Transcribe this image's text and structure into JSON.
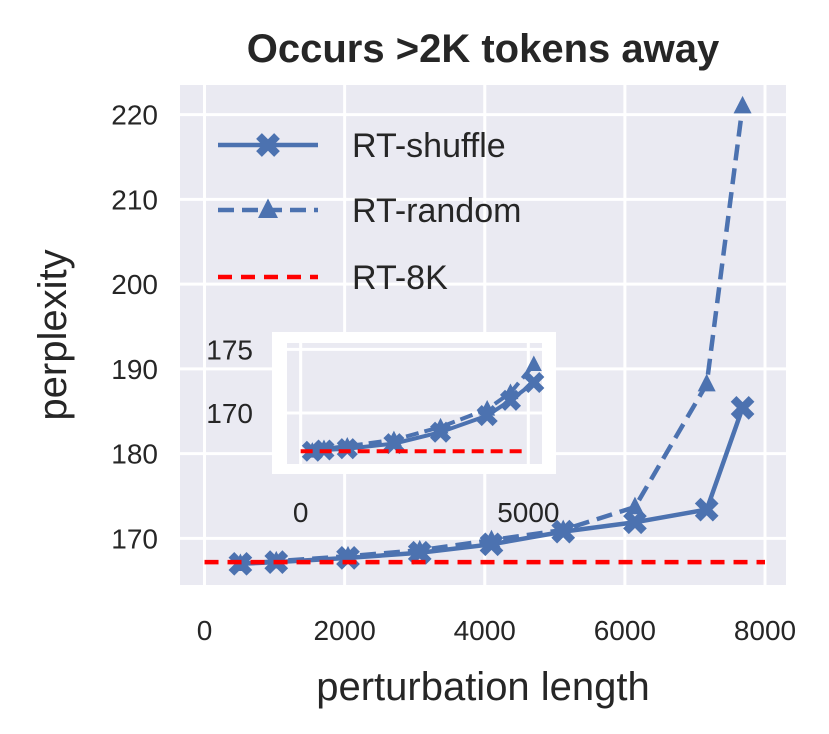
{
  "chart_data": {
    "type": "line",
    "title": "Occurs >2K tokens away",
    "xlabel": "perturbation length",
    "ylabel": "perplexity",
    "xlim": [
      -350,
      8300
    ],
    "ylim": [
      164.5,
      223.5
    ],
    "xticks": [
      0,
      2000,
      4000,
      6000,
      8000
    ],
    "yticks": [
      170,
      180,
      190,
      200,
      210,
      220
    ],
    "grid": true,
    "legend_position": "top-left",
    "colors": {
      "series": "#4c72b0",
      "baseline": "#ff0000",
      "background": "#eaeaf2",
      "grid": "#ffffff"
    },
    "series": [
      {
        "name": "RT-shuffle",
        "style": "solid",
        "marker": "x",
        "x": [
          512,
          1024,
          2048,
          3072,
          4096,
          5120,
          6144,
          7168,
          7680
        ],
        "y": [
          167.0,
          167.2,
          167.7,
          168.3,
          169.3,
          170.8,
          171.9,
          173.4,
          185.4
        ]
      },
      {
        "name": "RT-random",
        "style": "dashed",
        "marker": "triangle",
        "x": [
          512,
          1024,
          2048,
          3072,
          4096,
          5120,
          6144,
          7168,
          7680
        ],
        "y": [
          167.0,
          167.3,
          167.9,
          168.6,
          169.8,
          171.0,
          173.7,
          188.2,
          221.0
        ]
      },
      {
        "name": "RT-8K",
        "style": "dashed",
        "marker": "none",
        "x": [
          0,
          8000
        ],
        "y": [
          167.2,
          167.2
        ]
      }
    ],
    "inset": {
      "xlim": [
        -300,
        5300
      ],
      "ylim": [
        166.0,
        175.5
      ],
      "xticks": [
        0,
        5000
      ],
      "yticks": [
        170,
        175
      ],
      "series": [
        {
          "name": "RT-shuffle",
          "x": [
            256,
            512,
            1024,
            2048,
            3072,
            4096,
            4608,
            5120
          ],
          "y": [
            167.0,
            167.1,
            167.2,
            167.6,
            168.5,
            169.8,
            171.0,
            172.4
          ]
        },
        {
          "name": "RT-random",
          "x": [
            256,
            512,
            1024,
            2048,
            3072,
            4096,
            4608,
            5120
          ],
          "y": [
            167.0,
            167.2,
            167.4,
            167.9,
            168.9,
            170.3,
            171.6,
            173.8
          ]
        },
        {
          "name": "RT-8K",
          "x": [
            0,
            5000
          ],
          "y": [
            167.0,
            167.0
          ]
        }
      ]
    }
  }
}
